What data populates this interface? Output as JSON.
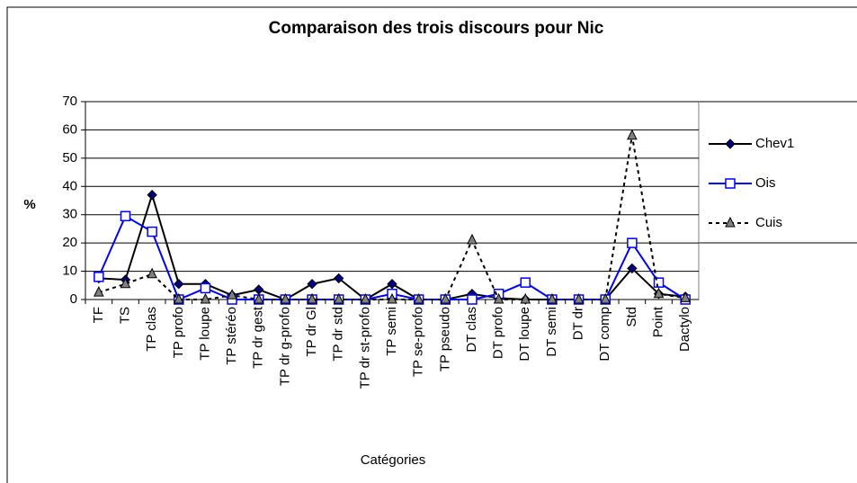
{
  "chart_data": {
    "type": "line",
    "title": "Comparaison des trois discours pour Nic",
    "x_label": "Catégories",
    "y_label": "%",
    "categories": [
      "TF",
      "TS",
      "TP clas",
      "TP profo",
      "TP loupe",
      "TP stéréo",
      "TP dr gest",
      "TP dr g-profo",
      "TP dr Gl",
      "TP dr std",
      "TP dr st-profo",
      "TP semi",
      "TP se-profo",
      "TP pseudo",
      "DT clas",
      "DT profo",
      "DT loupe",
      "DT semi",
      "DT dr",
      "DT comp",
      "Std",
      "Point",
      "Dactylo"
    ],
    "series": [
      {
        "name": "Chev1",
        "color": "#000000",
        "marker": "diamond",
        "line_style": "solid",
        "values": [
          7.5,
          7,
          37,
          5.5,
          5.5,
          1.5,
          3.5,
          0,
          5.5,
          7.5,
          0,
          5.5,
          0,
          0,
          2,
          0.5,
          0,
          0,
          0,
          0,
          11,
          2,
          1
        ]
      },
      {
        "name": "Ois",
        "color": "#0000ff",
        "marker": "square",
        "line_style": "solid",
        "values": [
          8,
          29.5,
          24,
          0,
          4,
          0,
          0,
          0,
          0,
          0,
          0,
          2,
          0,
          0,
          0,
          2,
          6,
          0,
          0,
          0,
          20,
          6,
          0
        ]
      },
      {
        "name": "Cuis",
        "color": "#000000",
        "marker": "triangle",
        "line_style": "dashed",
        "values": [
          2.5,
          5.5,
          9,
          0,
          0,
          1.5,
          0,
          0,
          0,
          0,
          0,
          0,
          0,
          0,
          21,
          0,
          0,
          0,
          0,
          0,
          58,
          2,
          0.5
        ]
      }
    ],
    "ylim": [
      0,
      70
    ],
    "yticks": [
      0,
      10,
      20,
      30,
      40,
      50,
      60,
      70
    ],
    "grid": true,
    "legend": "right"
  }
}
